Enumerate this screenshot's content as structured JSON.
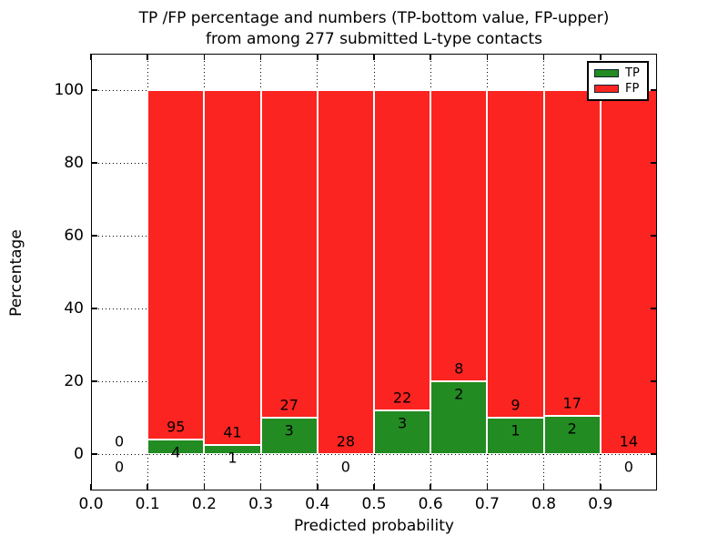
{
  "figure": {
    "title_line1": "TP /FP percentage and numbers (TP-bottom value, FP-upper)",
    "title_line2": "from among 277 submitted L-type contacts"
  },
  "chart_data": {
    "type": "bar",
    "stacked": true,
    "title": "TP /FP percentage and numbers (TP-bottom value, FP-upper) from among 277 submitted L-type contacts",
    "total_submitted_contacts": 277,
    "xlabel": "Predicted probability",
    "ylabel": "Percentage",
    "xlim": [
      0.0,
      1.0
    ],
    "ylim": [
      -10,
      110
    ],
    "grid": true,
    "xticks": [
      "0.0",
      "0.1",
      "0.2",
      "0.3",
      "0.4",
      "0.5",
      "0.6",
      "0.7",
      "0.8",
      "0.9"
    ],
    "yticks": [
      "0",
      "20",
      "40",
      "60",
      "80",
      "100"
    ],
    "ytick_values": [
      0,
      20,
      40,
      60,
      80,
      100
    ],
    "xtick_values": [
      0.0,
      0.1,
      0.2,
      0.3,
      0.4,
      0.5,
      0.6,
      0.7,
      0.8,
      0.9
    ],
    "colors": {
      "tp": "#228b22",
      "fp": "#fb2420"
    },
    "legend": {
      "position": "upper right",
      "items": [
        {
          "label": "TP",
          "color": "#228b22"
        },
        {
          "label": "FP",
          "color": "#fb2420"
        }
      ]
    },
    "bins": [
      {
        "x_start": 0.0,
        "x_end": 0.1,
        "tp_count": 0,
        "fp_count": 0,
        "tp_pct": 0,
        "fp_pct": 0,
        "has_bar": false
      },
      {
        "x_start": 0.1,
        "x_end": 0.2,
        "tp_count": 4,
        "fp_count": 95,
        "tp_pct": 4.04,
        "fp_pct": 95.96,
        "has_bar": true
      },
      {
        "x_start": 0.2,
        "x_end": 0.3,
        "tp_count": 1,
        "fp_count": 41,
        "tp_pct": 2.38,
        "fp_pct": 97.62,
        "has_bar": true
      },
      {
        "x_start": 0.3,
        "x_end": 0.4,
        "tp_count": 3,
        "fp_count": 27,
        "tp_pct": 10.0,
        "fp_pct": 90.0,
        "has_bar": true
      },
      {
        "x_start": 0.4,
        "x_end": 0.5,
        "tp_count": 0,
        "fp_count": 28,
        "tp_pct": 0,
        "fp_pct": 100.0,
        "has_bar": true
      },
      {
        "x_start": 0.5,
        "x_end": 0.6,
        "tp_count": 3,
        "fp_count": 22,
        "tp_pct": 12.0,
        "fp_pct": 88.0,
        "has_bar": true
      },
      {
        "x_start": 0.6,
        "x_end": 0.7,
        "tp_count": 2,
        "fp_count": 8,
        "tp_pct": 20.0,
        "fp_pct": 80.0,
        "has_bar": true
      },
      {
        "x_start": 0.7,
        "x_end": 0.8,
        "tp_count": 1,
        "fp_count": 9,
        "tp_pct": 10.0,
        "fp_pct": 90.0,
        "has_bar": true
      },
      {
        "x_start": 0.8,
        "x_end": 0.9,
        "tp_count": 2,
        "fp_count": 17,
        "tp_pct": 10.53,
        "fp_pct": 89.47,
        "has_bar": true
      },
      {
        "x_start": 0.9,
        "x_end": 1.0,
        "tp_count": 0,
        "fp_count": 14,
        "tp_pct": 0,
        "fp_pct": 100.0,
        "has_bar": true
      }
    ]
  }
}
